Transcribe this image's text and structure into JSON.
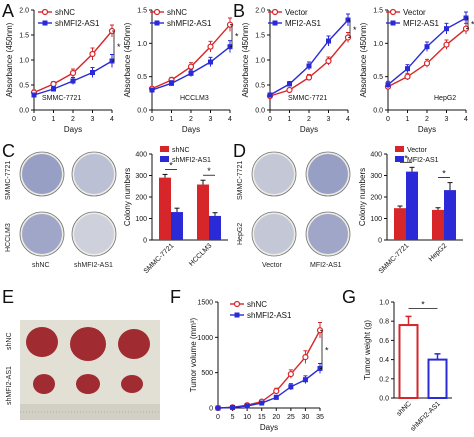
{
  "panels": {
    "A": "A",
    "B": "B",
    "C": "C",
    "D": "D",
    "E": "E",
    "F": "F",
    "G": "G"
  },
  "photos": {
    "C": {
      "row_labels": [
        "SMMC-7721",
        "HCCLM3"
      ],
      "col_labels": [
        "shNC",
        "shMFI2-AS1"
      ]
    },
    "D": {
      "row_labels": [
        "SMMC-7721",
        "HepG2"
      ],
      "col_labels": [
        "Vector",
        "MFI2-AS1"
      ]
    },
    "E": {
      "row_labels": [
        "shNC",
        "shMFI2-AS1"
      ]
    }
  },
  "colors": {
    "red": "#d7262a",
    "blue": "#2a2ad6",
    "plate": "#e2dfd4",
    "tumor": "#a02b30",
    "dish_bg": "#ecece6"
  },
  "chart_data": [
    {
      "id": "A1",
      "type": "line",
      "x": [
        0,
        1,
        2,
        3,
        4
      ],
      "xticks": [
        "0",
        "1",
        "2",
        "3",
        "4"
      ],
      "xlim": [
        0,
        4
      ],
      "ylim": [
        0.0,
        2.0
      ],
      "yticks": [
        "0.0",
        "0.5",
        "1.0",
        "1.5",
        "2.0"
      ],
      "xlabel": "Days",
      "ylabel": "Absorbance (450nm)",
      "annotation": "SMMC-7721",
      "significance": "*",
      "series": [
        {
          "name": "shNC",
          "color": "red",
          "marker": "open-circle",
          "values": [
            0.35,
            0.52,
            0.74,
            1.12,
            1.58
          ],
          "err": [
            0.05,
            0.05,
            0.08,
            0.12,
            0.12
          ]
        },
        {
          "name": "shMFI2-AS1",
          "color": "blue",
          "marker": "square",
          "values": [
            0.3,
            0.42,
            0.58,
            0.75,
            0.98
          ],
          "err": [
            0.04,
            0.05,
            0.07,
            0.1,
            0.13
          ]
        }
      ]
    },
    {
      "id": "A2",
      "type": "line",
      "x": [
        0,
        1,
        2,
        3,
        4
      ],
      "xticks": [
        "0",
        "1",
        "2",
        "3",
        "4"
      ],
      "xlim": [
        0,
        4
      ],
      "ylim": [
        0.0,
        1.5
      ],
      "yticks": [
        "0.0",
        "0.5",
        "1.0",
        "1.5"
      ],
      "xlabel": "Days",
      "ylabel": "Absorbance (450nm)",
      "annotation": "HCCLM3",
      "significance": "*",
      "series": [
        {
          "name": "shNC",
          "color": "red",
          "marker": "open-circle",
          "values": [
            0.32,
            0.45,
            0.65,
            0.95,
            1.28
          ],
          "err": [
            0.03,
            0.04,
            0.06,
            0.08,
            0.1
          ]
        },
        {
          "name": "shMFI2-AS1",
          "color": "blue",
          "marker": "square",
          "values": [
            0.3,
            0.4,
            0.55,
            0.72,
            0.95
          ],
          "err": [
            0.03,
            0.04,
            0.05,
            0.07,
            0.09
          ]
        }
      ]
    },
    {
      "id": "B1",
      "type": "line",
      "x": [
        0,
        1,
        2,
        3,
        4
      ],
      "xticks": [
        "0",
        "1",
        "2",
        "3",
        "4"
      ],
      "xlim": [
        0,
        4
      ],
      "ylim": [
        0.0,
        2.0
      ],
      "yticks": [
        "0.0",
        "0.5",
        "1.0",
        "1.5",
        "2.0"
      ],
      "xlabel": "Days",
      "ylabel": "Absorbance (450nm)",
      "annotation": "SMMC-7721",
      "significance": "*",
      "series": [
        {
          "name": "Vector",
          "color": "red",
          "marker": "open-circle",
          "values": [
            0.28,
            0.4,
            0.65,
            0.98,
            1.45
          ],
          "err": [
            0.03,
            0.04,
            0.06,
            0.08,
            0.1
          ]
        },
        {
          "name": "MFI2-AS1",
          "color": "blue",
          "marker": "square",
          "values": [
            0.3,
            0.52,
            0.88,
            1.38,
            1.8
          ],
          "err": [
            0.03,
            0.05,
            0.08,
            0.1,
            0.12
          ]
        }
      ]
    },
    {
      "id": "B2",
      "type": "line",
      "x": [
        0,
        1,
        2,
        3,
        4
      ],
      "xticks": [
        "0",
        "1",
        "2",
        "3",
        "4"
      ],
      "xlim": [
        0,
        4
      ],
      "ylim": [
        0.0,
        1.5
      ],
      "yticks": [
        "0.0",
        "0.5",
        "1.0",
        "1.5"
      ],
      "xlabel": "Days",
      "ylabel": "Absorbance (450nm)",
      "annotation": "HepG2",
      "significance": "*",
      "series": [
        {
          "name": "Vector",
          "color": "red",
          "marker": "open-circle",
          "values": [
            0.35,
            0.5,
            0.7,
            0.98,
            1.22
          ],
          "err": [
            0.04,
            0.05,
            0.06,
            0.07,
            0.08
          ]
        },
        {
          "name": "MFI2-AS1",
          "color": "blue",
          "marker": "square",
          "values": [
            0.38,
            0.62,
            0.95,
            1.22,
            1.38
          ],
          "err": [
            0.05,
            0.06,
            0.07,
            0.08,
            0.09
          ]
        }
      ]
    },
    {
      "id": "C",
      "type": "bar",
      "categories": [
        "SMMC-7721",
        "HCCLM3"
      ],
      "ylim": [
        0,
        400
      ],
      "yticks": [
        "0",
        "100",
        "200",
        "300",
        "400"
      ],
      "ylabel": "Colony numbers",
      "significance": [
        "*",
        "*"
      ],
      "series": [
        {
          "name": "shNC",
          "color": "red",
          "values": [
            290,
            258
          ],
          "err": [
            15,
            20
          ]
        },
        {
          "name": "shMFI2-AS1",
          "color": "blue",
          "values": [
            130,
            112
          ],
          "err": [
            18,
            15
          ]
        }
      ]
    },
    {
      "id": "D",
      "type": "bar",
      "categories": [
        "SMMC-7721",
        "HepG2"
      ],
      "ylim": [
        0,
        400
      ],
      "yticks": [
        "0",
        "100",
        "200",
        "300",
        "400"
      ],
      "ylabel": "Colony numbers",
      "significance": [
        "*",
        "*"
      ],
      "series": [
        {
          "name": "Vector",
          "color": "red",
          "values": [
            148,
            140
          ],
          "err": [
            10,
            10
          ]
        },
        {
          "name": "MFI2-AS1",
          "color": "blue",
          "values": [
            318,
            232
          ],
          "err": [
            20,
            35
          ]
        }
      ]
    },
    {
      "id": "F",
      "type": "line",
      "x": [
        0,
        5,
        10,
        15,
        20,
        25,
        30,
        35
      ],
      "xticks": [
        "0",
        "5",
        "10",
        "15",
        "20",
        "25",
        "30",
        "35"
      ],
      "xlim": [
        0,
        35
      ],
      "ylim": [
        0,
        1500
      ],
      "yticks": [
        "0",
        "500",
        "1000",
        "1500"
      ],
      "xlabel": "Days",
      "ylabel": "Tumor volume (mm³)",
      "significance": "*",
      "series": [
        {
          "name": "shNC",
          "color": "red",
          "marker": "open-circle",
          "values": [
            0,
            10,
            40,
            90,
            240,
            480,
            720,
            1100
          ],
          "err": [
            0,
            5,
            10,
            20,
            40,
            60,
            90,
            110
          ]
        },
        {
          "name": "shMFI2-AS1",
          "color": "blue",
          "marker": "square",
          "values": [
            0,
            8,
            30,
            70,
            150,
            300,
            400,
            560
          ],
          "err": [
            0,
            5,
            8,
            15,
            30,
            45,
            55,
            70
          ]
        }
      ]
    },
    {
      "id": "G",
      "type": "bar",
      "categories": [
        "shNC",
        "shMFI2-AS1"
      ],
      "ylim": [
        0.0,
        1.0
      ],
      "yticks": [
        "0.0",
        "0.2",
        "0.4",
        "0.6",
        "0.8",
        "1.0"
      ],
      "ylabel": "Tumor weight (g)",
      "significance": "*",
      "series": [
        {
          "name": "",
          "colors": [
            "red",
            "blue"
          ],
          "values": [
            0.76,
            0.4
          ],
          "err": [
            0.09,
            0.06
          ]
        }
      ]
    }
  ]
}
